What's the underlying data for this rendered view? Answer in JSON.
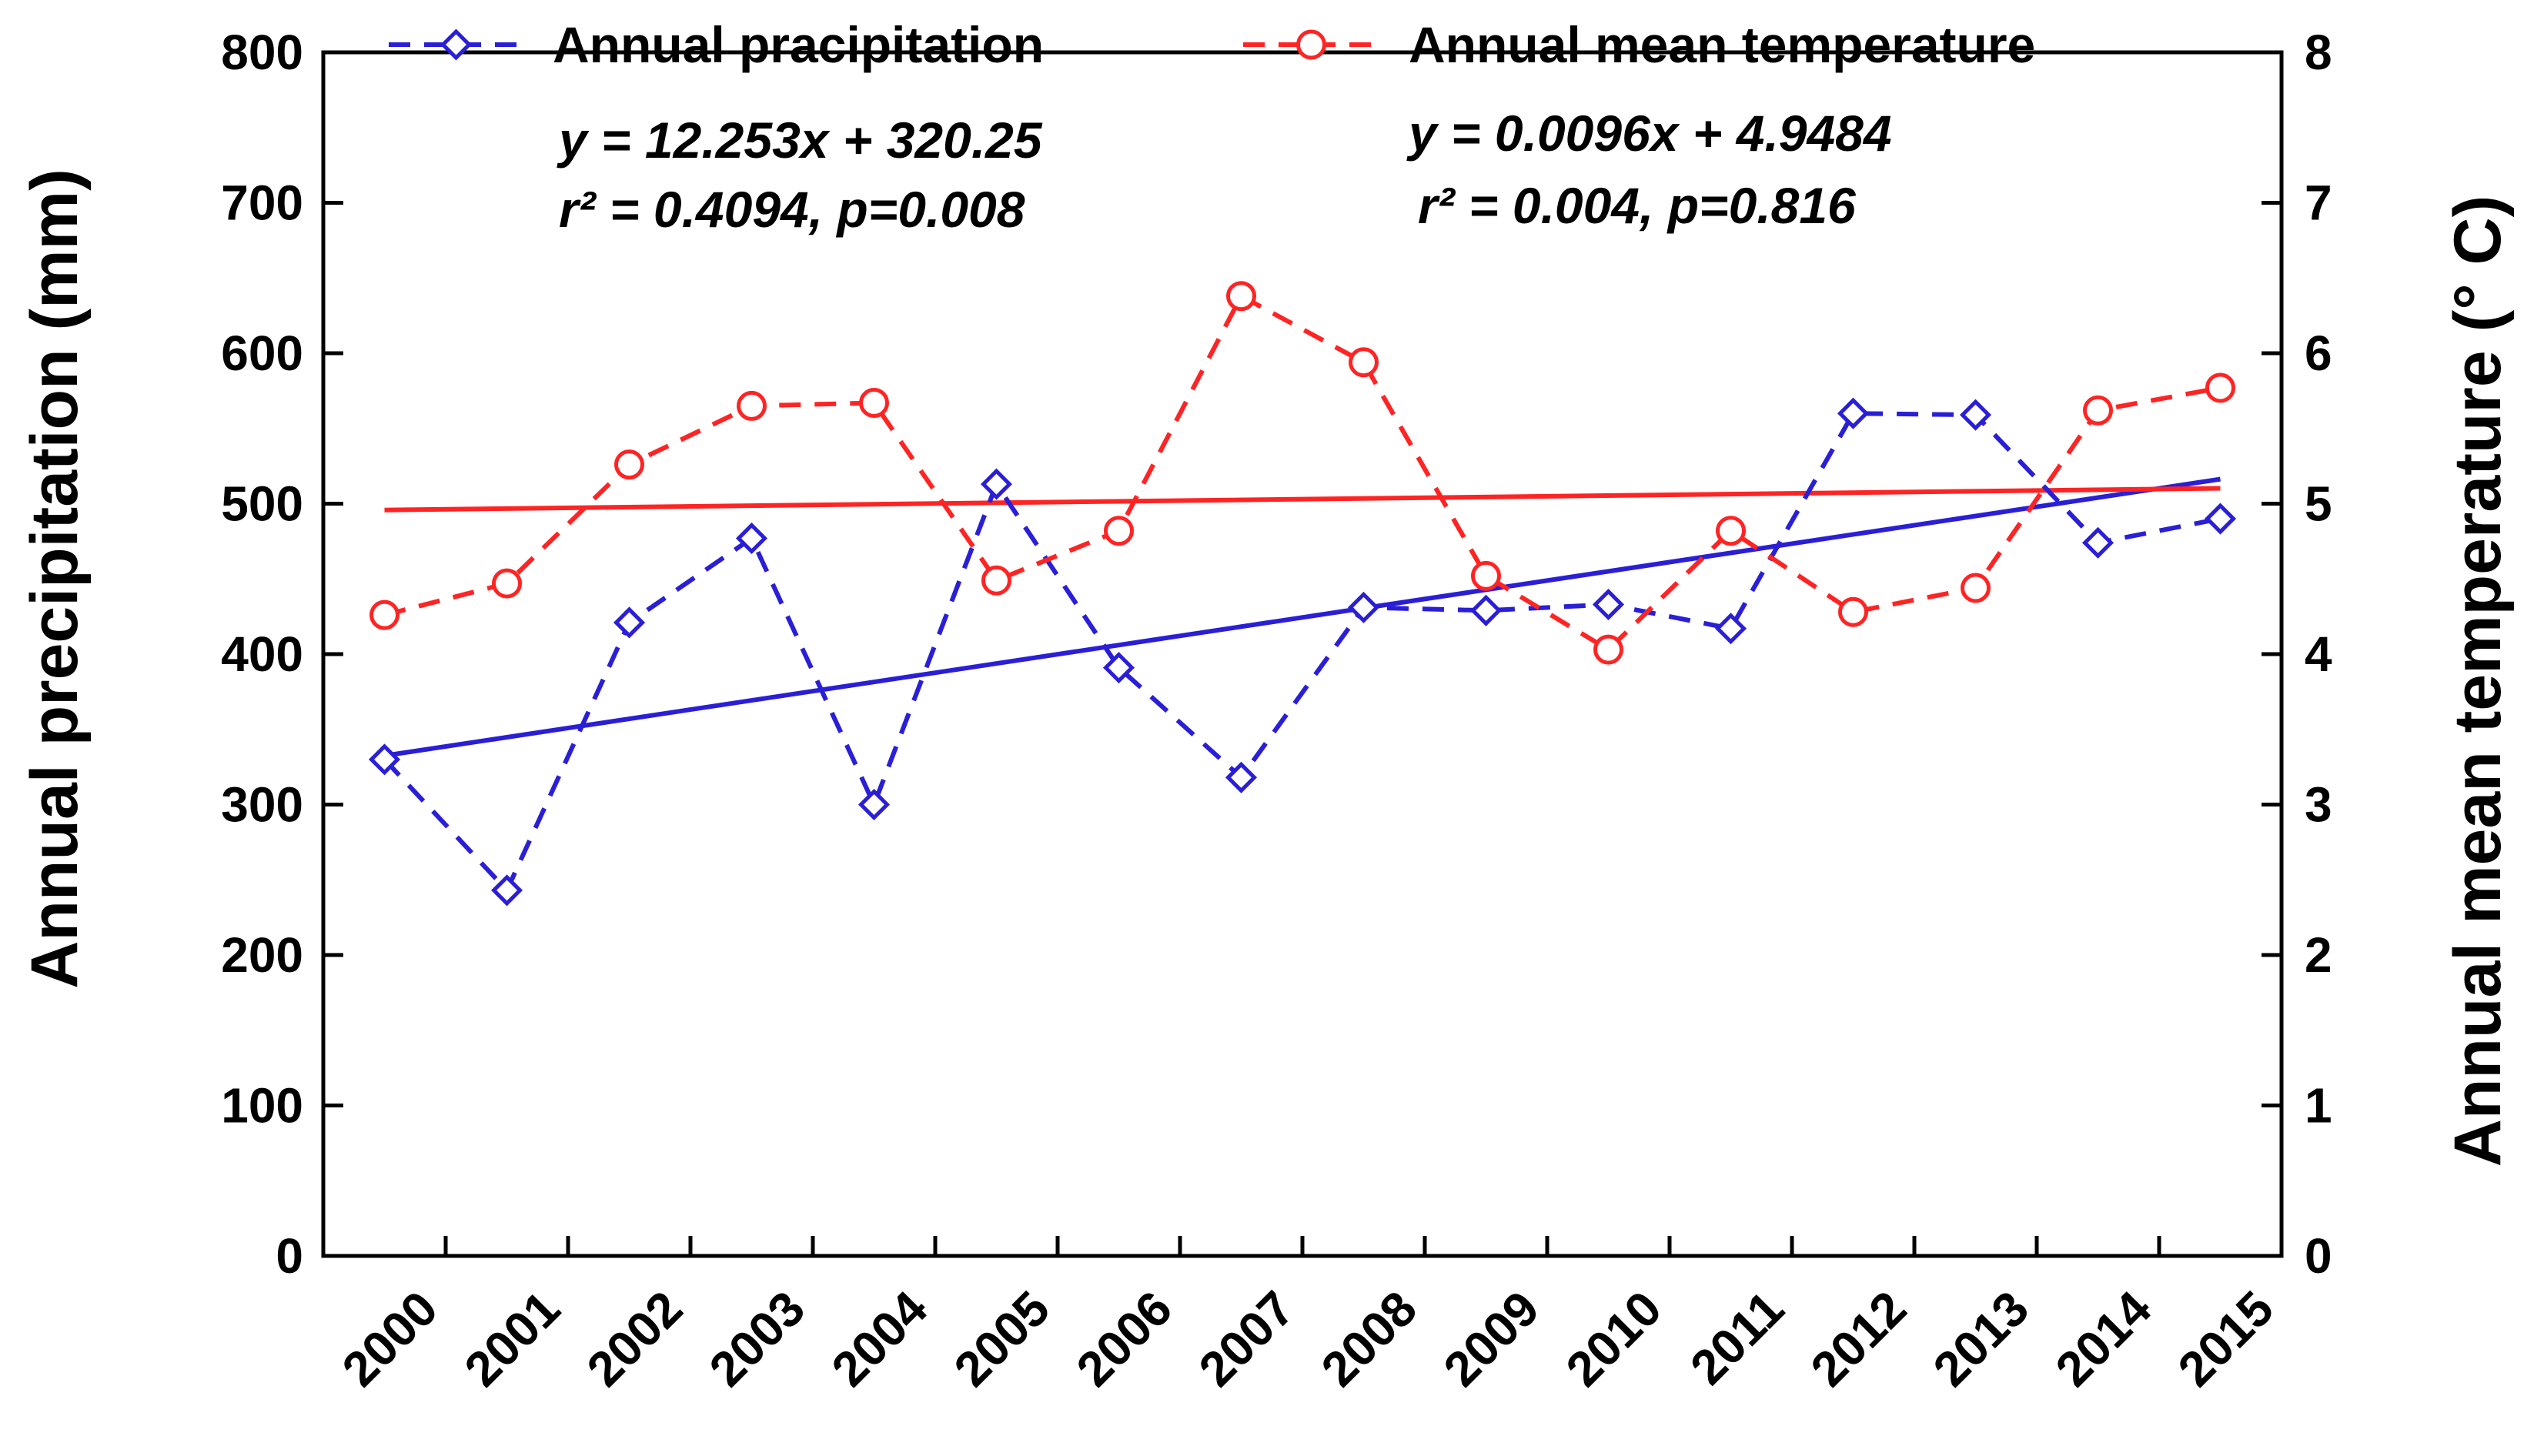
{
  "chart_data": {
    "type": "line",
    "x": [
      2000,
      2001,
      2002,
      2003,
      2004,
      2005,
      2006,
      2007,
      2008,
      2009,
      2010,
      2011,
      2012,
      2013,
      2014,
      2015
    ],
    "x_tick_labels": [
      "2000",
      "2001",
      "2002",
      "2003",
      "2004",
      "2005",
      "2006",
      "2007",
      "2008",
      "2009",
      "2010",
      "2011",
      "2012",
      "2013",
      "2014",
      "2015"
    ],
    "series": [
      {
        "name": "Annual pracipitation",
        "axis": "left",
        "color": "#2a1fd6",
        "marker": "diamond",
        "line_style": "dashed",
        "values": [
          330,
          243,
          421,
          477,
          300,
          513,
          391,
          318,
          431,
          429,
          433,
          417,
          560,
          559,
          474,
          490
        ]
      },
      {
        "name": "Annual mean temperature",
        "axis": "right",
        "color": "#ff2424",
        "marker": "circle",
        "line_style": "dashed",
        "values": [
          4.26,
          4.47,
          5.26,
          5.65,
          5.67,
          4.49,
          4.82,
          6.38,
          5.94,
          4.52,
          4.03,
          4.82,
          4.28,
          4.44,
          5.62,
          5.77
        ]
      }
    ],
    "trendlines": [
      {
        "series": "Annual pracipitation",
        "axis": "left",
        "color": "#2a1fd6",
        "slope": 12.253,
        "intercept": 320.25,
        "equation": "y = 12.253x + 320.25",
        "stats": "r² = 0.4094, p=0.008"
      },
      {
        "series": "Annual mean temperature",
        "axis": "right",
        "color": "#ff2424",
        "slope": 0.0096,
        "intercept": 4.9484,
        "equation": "y = 0.0096x + 4.9484",
        "stats": "r² = 0.004, p=0.816"
      }
    ],
    "ylabel_left": "Annual precipitation (mm)",
    "ylabel_right": "Annual mean temperature (° C)",
    "ylim_left": [
      0,
      800
    ],
    "ylim_right": [
      0,
      8
    ],
    "yticks_left": [
      0,
      100,
      200,
      300,
      400,
      500,
      600,
      700,
      800
    ],
    "yticks_right": [
      0,
      1,
      2,
      3,
      4,
      5,
      6,
      7,
      8
    ],
    "grid": false,
    "legend_position": "top"
  }
}
